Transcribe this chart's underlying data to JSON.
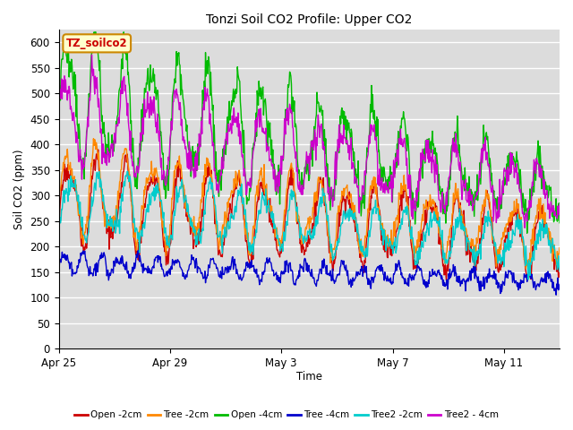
{
  "title": "Tonzi Soil CO2 Profile: Upper CO2",
  "xlabel": "Time",
  "ylabel": "Soil CO2 (ppm)",
  "ylim": [
    0,
    625
  ],
  "yticks": [
    0,
    50,
    100,
    150,
    200,
    250,
    300,
    350,
    400,
    450,
    500,
    550,
    600
  ],
  "xtick_labels": [
    "Apr 25",
    "Apr 29",
    "May 3",
    "May 7",
    "May 11"
  ],
  "xtick_positions": [
    0,
    4,
    8,
    12,
    16
  ],
  "bg_color": "#dcdcdc",
  "fig_bg_color": "#ffffff",
  "grid_color": "#ffffff",
  "legend_box_color": "#ffffcc",
  "legend_box_edge": "#cc8800",
  "legend_text": "TZ_soilco2",
  "series": [
    {
      "label": "Open -2cm",
      "color": "#cc0000",
      "lw": 1.0
    },
    {
      "label": "Tree -2cm",
      "color": "#ff8800",
      "lw": 1.0
    },
    {
      "label": "Open -4cm",
      "color": "#00bb00",
      "lw": 1.0
    },
    {
      "label": "Tree -4cm",
      "color": "#0000cc",
      "lw": 1.0
    },
    {
      "label": "Tree2 -2cm",
      "color": "#00cccc",
      "lw": 1.0
    },
    {
      "label": "Tree2 - 4cm",
      "color": "#cc00cc",
      "lw": 1.0
    }
  ]
}
